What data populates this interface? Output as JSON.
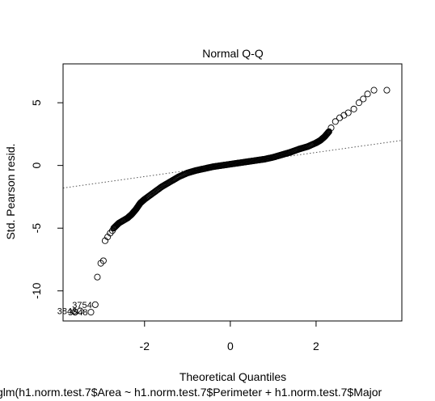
{
  "chart_data": {
    "type": "scatter",
    "title": "Normal Q-Q",
    "xlabel": "Theoretical Quantiles",
    "ylabel": "Std. Pearson resid.",
    "caption": "glm(h1.norm.test.7$Area ~ h1.norm.test.7$Perimeter + h1.norm.test.7$Major",
    "xlim": [
      -3.9,
      4.0
    ],
    "ylim": [
      -12.4,
      8.1
    ],
    "x_ticks": [
      -2,
      0,
      2
    ],
    "y_ticks": [
      -10,
      -5,
      0,
      5
    ],
    "x_tick_labels": [
      "-2",
      "0",
      "2"
    ],
    "y_tick_labels": [
      "-10",
      "-5",
      "0",
      "5"
    ],
    "grid": false,
    "reference_line": {
      "style": "dotted",
      "points": [
        [
          -3.9,
          -1.8
        ],
        [
          4.0,
          2.0
        ]
      ]
    },
    "marker": "open-circle",
    "point_labels": [
      {
        "text": "3754",
        "x": -3.15,
        "y": -11.1
      },
      {
        "text": "3843",
        "x": -3.5,
        "y": -11.6
      },
      {
        "text": "3548",
        "x": -3.25,
        "y": -11.7
      }
    ],
    "tail_points": [
      [
        -3.62,
        -11.7
      ],
      [
        -3.5,
        -11.6
      ],
      [
        -3.25,
        -11.7
      ],
      [
        -3.15,
        -11.1
      ],
      [
        -3.1,
        -8.9
      ],
      [
        -3.02,
        -7.8
      ],
      [
        -2.96,
        -7.6
      ],
      [
        -2.92,
        -6.0
      ],
      [
        -2.86,
        -5.7
      ],
      [
        -2.8,
        -5.4
      ],
      [
        -2.75,
        -5.2
      ],
      [
        2.35,
        3.0
      ],
      [
        2.45,
        3.5
      ],
      [
        2.55,
        3.8
      ],
      [
        2.65,
        4.0
      ],
      [
        2.75,
        4.2
      ],
      [
        2.88,
        4.5
      ],
      [
        3.0,
        5.0
      ],
      [
        3.1,
        5.3
      ],
      [
        3.2,
        5.7
      ],
      [
        3.35,
        6.0
      ],
      [
        3.65,
        6.0
      ]
    ],
    "body_curve": [
      [
        -2.72,
        -5.0
      ],
      [
        -2.6,
        -4.6
      ],
      [
        -2.4,
        -4.2
      ],
      [
        -2.3,
        -3.9
      ],
      [
        -2.2,
        -3.5
      ],
      [
        -2.1,
        -3.0
      ],
      [
        -2.0,
        -2.7
      ],
      [
        -1.8,
        -2.2
      ],
      [
        -1.6,
        -1.7
      ],
      [
        -1.4,
        -1.3
      ],
      [
        -1.2,
        -0.9
      ],
      [
        -1.0,
        -0.6
      ],
      [
        -0.8,
        -0.4
      ],
      [
        -0.6,
        -0.25
      ],
      [
        -0.4,
        -0.1
      ],
      [
        -0.2,
        0.0
      ],
      [
        0.0,
        0.1
      ],
      [
        0.2,
        0.2
      ],
      [
        0.4,
        0.3
      ],
      [
        0.6,
        0.4
      ],
      [
        0.8,
        0.5
      ],
      [
        1.0,
        0.65
      ],
      [
        1.2,
        0.85
      ],
      [
        1.4,
        1.05
      ],
      [
        1.6,
        1.3
      ],
      [
        1.8,
        1.5
      ],
      [
        2.0,
        1.8
      ],
      [
        2.1,
        2.0
      ],
      [
        2.2,
        2.3
      ],
      [
        2.3,
        2.7
      ]
    ]
  }
}
